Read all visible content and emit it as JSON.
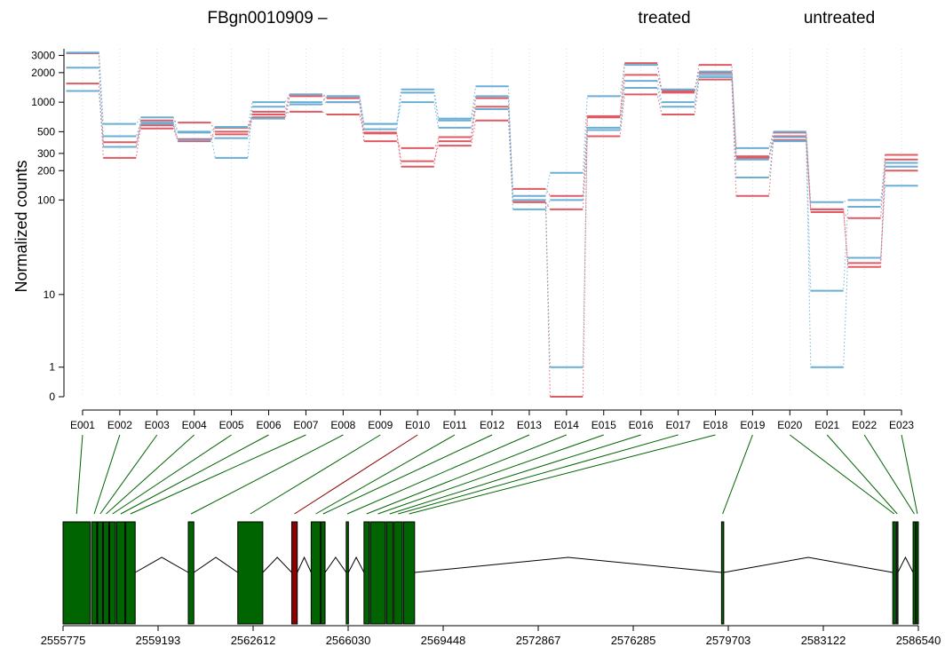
{
  "chart_data": [
    {
      "type": "line",
      "title": "FBgn0010909 –",
      "xlabel": "",
      "ylabel": "Normalized counts",
      "y_scale": "log (count + 1)",
      "y_ticks": [
        0,
        1,
        10,
        100,
        200,
        300,
        500,
        1000,
        2000,
        3000
      ],
      "ylim": [
        0,
        3500
      ],
      "legend_position": "top-right",
      "grid": "vertical dotted lines at exon centers",
      "colors": {
        "treated": "#e05a63",
        "untreated": "#6aaed6",
        "link_normal": "#006400",
        "link_highlight": "#8b0000"
      },
      "categories": [
        "E001",
        "E002",
        "E003",
        "E004",
        "E005",
        "E006",
        "E007",
        "E008",
        "E009",
        "E010",
        "E011",
        "E012",
        "E013",
        "E014",
        "E015",
        "E016",
        "E017",
        "E018",
        "E019",
        "E020",
        "E021",
        "E022",
        "E023"
      ],
      "series": [
        {
          "name": "treated",
          "group": "treated",
          "values": [
            3150,
            350,
            650,
            620,
            500,
            800,
            1200,
            1100,
            400,
            340,
            400,
            900,
            130,
            110,
            720,
            2500,
            1250,
            2400,
            270,
            490,
            75,
            65,
            290
          ]
        },
        {
          "name": "treated",
          "group": "treated",
          "values": [
            1550,
            270,
            580,
            420,
            470,
            750,
            800,
            750,
            480,
            250,
            360,
            650,
            95,
            80,
            450,
            1200,
            750,
            1700,
            110,
            450,
            80,
            20,
            200
          ]
        },
        {
          "name": "treated",
          "group": "treated",
          "values": [
            1300,
            390,
            540,
            400,
            550,
            700,
            1150,
            1000,
            490,
            220,
            440,
            1100,
            95,
            0,
            700,
            1900,
            1300,
            2000,
            280,
            410,
            80,
            22,
            260
          ]
        },
        {
          "name": "untreated",
          "group": "untreated",
          "values": [
            3200,
            600,
            700,
            500,
            560,
            1000,
            1200,
            1150,
            600,
            1350,
            680,
            1450,
            110,
            190,
            1150,
            2400,
            1350,
            2050,
            340,
            500,
            95,
            100,
            240
          ]
        },
        {
          "name": "untreated",
          "group": "untreated",
          "values": [
            2250,
            450,
            620,
            490,
            270,
            900,
            950,
            1000,
            530,
            1250,
            650,
            1150,
            80,
            100,
            550,
            1650,
            1000,
            1900,
            170,
            400,
            11,
            85,
            220
          ]
        },
        {
          "name": "untreated",
          "group": "untreated",
          "values": [
            1300,
            350,
            600,
            410,
            430,
            680,
            1000,
            1150,
            600,
            1000,
            550,
            850,
            100,
            1,
            520,
            1400,
            900,
            1800,
            260,
            440,
            1,
            25,
            140
          ]
        }
      ]
    },
    {
      "type": "gene_model",
      "x_ticks": [
        "2555775",
        "2559193",
        "2562612",
        "2566030",
        "2569448",
        "2572867",
        "2576285",
        "2579703",
        "2583122",
        "2586540"
      ],
      "xlim": [
        2555775,
        2586540
      ],
      "exons": [
        {
          "id": "E001",
          "start": 2555775,
          "end": 2556750,
          "highlight": false
        },
        {
          "id": "E002",
          "start": 2556800,
          "end": 2556990,
          "highlight": false
        },
        {
          "id": "E003",
          "start": 2557020,
          "end": 2557200,
          "highlight": false
        },
        {
          "id": "E004",
          "start": 2557230,
          "end": 2557420,
          "highlight": false
        },
        {
          "id": "E005",
          "start": 2557450,
          "end": 2557660,
          "highlight": false
        },
        {
          "id": "E006",
          "start": 2557700,
          "end": 2558000,
          "highlight": false
        },
        {
          "id": "E007",
          "start": 2558030,
          "end": 2558370,
          "highlight": false
        },
        {
          "id": "E008",
          "start": 2560280,
          "end": 2560480,
          "highlight": false
        },
        {
          "id": "E009",
          "start": 2562060,
          "end": 2562960,
          "highlight": false
        },
        {
          "id": "E010",
          "start": 2564000,
          "end": 2564200,
          "highlight": true
        },
        {
          "id": "E011",
          "start": 2564700,
          "end": 2565030,
          "highlight": false
        },
        {
          "id": "E012",
          "start": 2565060,
          "end": 2565200,
          "highlight": false
        },
        {
          "id": "E013",
          "start": 2565960,
          "end": 2566040,
          "highlight": false
        },
        {
          "id": "E014",
          "start": 2566600,
          "end": 2566790,
          "highlight": false
        },
        {
          "id": "E015",
          "start": 2566830,
          "end": 2567370,
          "highlight": false
        },
        {
          "id": "E016",
          "start": 2567410,
          "end": 2567640,
          "highlight": false
        },
        {
          "id": "E017",
          "start": 2567680,
          "end": 2567980,
          "highlight": false
        },
        {
          "id": "E018",
          "start": 2568020,
          "end": 2568420,
          "highlight": false
        },
        {
          "id": "E019",
          "start": 2579460,
          "end": 2579540,
          "highlight": false
        },
        {
          "id": "E020",
          "start": 2585620,
          "end": 2585720,
          "highlight": false
        },
        {
          "id": "E021",
          "start": 2585760,
          "end": 2585800,
          "highlight": false
        },
        {
          "id": "E022",
          "start": 2586350,
          "end": 2586440,
          "highlight": false
        },
        {
          "id": "E023",
          "start": 2586470,
          "end": 2586540,
          "highlight": false
        }
      ],
      "introns": [
        [
          2558370,
          2560280
        ],
        [
          2560480,
          2562060
        ],
        [
          2562960,
          2564000
        ],
        [
          2564200,
          2564700
        ],
        [
          2565200,
          2565960
        ],
        [
          2566040,
          2566600
        ],
        [
          2568420,
          2579460
        ],
        [
          2579540,
          2585620
        ],
        [
          2585800,
          2586350
        ]
      ]
    }
  ]
}
